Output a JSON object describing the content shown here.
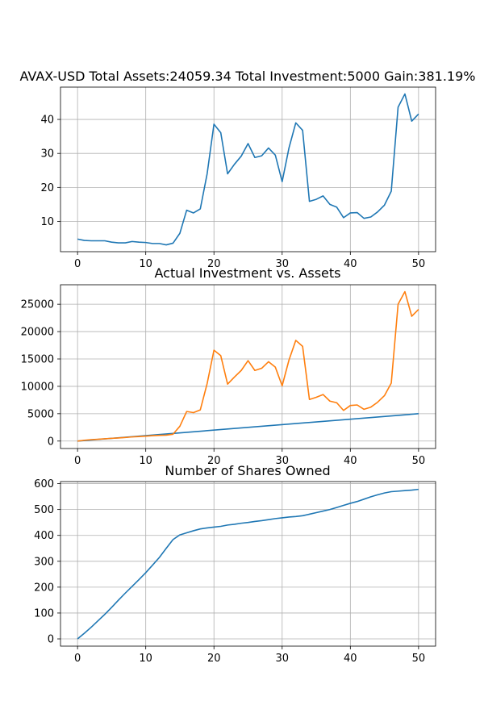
{
  "figure": {
    "background": "#ffffff"
  },
  "chart_data": [
    {
      "type": "line",
      "title": "AVAX-USD Total Assets:24059.34  Total Investment:5000  Gain:381.19%",
      "xlabel": "",
      "ylabel": "",
      "xlim": [
        -2.5,
        52.5
      ],
      "ylim": [
        1.1,
        49.5
      ],
      "xticks": [
        0,
        10,
        20,
        30,
        40,
        50
      ],
      "yticks": [
        10,
        20,
        30,
        40
      ],
      "grid": true,
      "series": [
        {
          "color": "#1f77b4",
          "x": [
            0,
            1,
            2,
            3,
            4,
            5,
            6,
            7,
            8,
            9,
            10,
            11,
            12,
            13,
            14,
            15,
            16,
            17,
            18,
            19,
            20,
            21,
            22,
            23,
            24,
            25,
            26,
            27,
            28,
            29,
            30,
            31,
            32,
            33,
            34,
            35,
            36,
            37,
            38,
            39,
            40,
            41,
            42,
            43,
            44,
            45,
            46,
            47,
            48,
            49,
            50
          ],
          "y": [
            4.8,
            4.4,
            4.3,
            4.3,
            4.3,
            3.9,
            3.7,
            3.7,
            4.1,
            3.9,
            3.8,
            3.5,
            3.5,
            3.1,
            3.6,
            6.5,
            13.3,
            12.5,
            13.7,
            24.0,
            38.6,
            36.1,
            24.0,
            26.8,
            29.2,
            32.9,
            28.8,
            29.3,
            31.6,
            29.5,
            21.7,
            31.6,
            39.0,
            36.8,
            15.9,
            16.5,
            17.5,
            15.0,
            14.2,
            11.1,
            12.5,
            12.6,
            10.9,
            11.3,
            12.8,
            14.8,
            18.9,
            43.6,
            47.5,
            39.5,
            41.6
          ]
        }
      ]
    },
    {
      "type": "line",
      "title": "Actual Investment vs. Assets",
      "xlabel": "",
      "ylabel": "",
      "xlim": [
        -2.5,
        52.5
      ],
      "ylim": [
        -1360,
        28560
      ],
      "xticks": [
        0,
        10,
        20,
        30,
        40,
        50
      ],
      "yticks": [
        0,
        5000,
        10000,
        15000,
        20000,
        25000
      ],
      "grid": true,
      "series": [
        {
          "color": "#1f77b4",
          "x": [
            0,
            50
          ],
          "y": [
            0,
            5000
          ]
        },
        {
          "color": "#ff7f0e",
          "x": [
            0,
            1,
            2,
            3,
            4,
            5,
            6,
            7,
            8,
            9,
            10,
            11,
            12,
            13,
            14,
            15,
            16,
            17,
            18,
            19,
            20,
            21,
            22,
            23,
            24,
            25,
            26,
            27,
            28,
            29,
            30,
            31,
            32,
            33,
            34,
            35,
            36,
            37,
            38,
            39,
            40,
            41,
            42,
            43,
            44,
            45,
            46,
            47,
            48,
            49,
            50
          ],
          "y": [
            0,
            150,
            260,
            330,
            420,
            500,
            570,
            650,
            760,
            830,
            900,
            990,
            1050,
            1080,
            1250,
            2700,
            5400,
            5200,
            5700,
            10500,
            16600,
            15600,
            10400,
            11700,
            12900,
            14700,
            12900,
            13300,
            14500,
            13500,
            10100,
            14800,
            18400,
            17300,
            7600,
            8000,
            8500,
            7300,
            7000,
            5600,
            6500,
            6600,
            5800,
            6200,
            7100,
            8300,
            10600,
            25000,
            27300,
            22800,
            24059
          ]
        }
      ]
    },
    {
      "type": "line",
      "title": "Number of Shares Owned",
      "xlabel": "",
      "ylabel": "",
      "xlim": [
        -2.5,
        52.5
      ],
      "ylim": [
        -28,
        608
      ],
      "xticks": [
        0,
        10,
        20,
        30,
        40,
        50
      ],
      "yticks": [
        0,
        100,
        200,
        300,
        400,
        500,
        600
      ],
      "grid": true,
      "series": [
        {
          "color": "#1f77b4",
          "x": [
            0,
            1,
            2,
            3,
            4,
            5,
            6,
            7,
            8,
            9,
            10,
            11,
            12,
            13,
            14,
            15,
            16,
            17,
            18,
            19,
            20,
            21,
            22,
            23,
            24,
            25,
            26,
            27,
            28,
            29,
            30,
            31,
            32,
            33,
            34,
            35,
            36,
            37,
            38,
            39,
            40,
            41,
            42,
            43,
            44,
            45,
            46,
            47,
            48,
            49,
            50
          ],
          "y": [
            0,
            22,
            45,
            70,
            95,
            122,
            150,
            177,
            203,
            229,
            256,
            285,
            315,
            350,
            384,
            402,
            410,
            418,
            425,
            429,
            432,
            435,
            440,
            443,
            447,
            450,
            454,
            457,
            461,
            465,
            468,
            471,
            473,
            476,
            482,
            488,
            494,
            500,
            508,
            516,
            524,
            531,
            540,
            549,
            557,
            564,
            569,
            571,
            573,
            575,
            578
          ]
        }
      ]
    }
  ]
}
